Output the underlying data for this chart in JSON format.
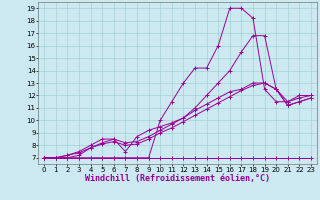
{
  "xlabel": "Windchill (Refroidissement éolien,°C)",
  "bg_color": "#cce8f0",
  "line_color": "#990099",
  "grid_color": "#99cccc",
  "xlim": [
    -0.5,
    23.5
  ],
  "ylim": [
    6.5,
    19.5
  ],
  "xticks": [
    0,
    1,
    2,
    3,
    4,
    5,
    6,
    7,
    8,
    9,
    10,
    11,
    12,
    13,
    14,
    15,
    16,
    17,
    18,
    19,
    20,
    21,
    22,
    23
  ],
  "yticks": [
    7,
    8,
    9,
    10,
    11,
    12,
    13,
    14,
    15,
    16,
    17,
    18,
    19
  ],
  "line1_x": [
    0,
    1,
    2,
    3,
    4,
    5,
    6,
    7,
    8,
    9,
    10,
    11,
    12,
    13,
    14,
    15,
    16,
    17,
    18,
    19,
    20,
    21,
    22,
    23
  ],
  "line1_y": [
    7,
    7,
    7,
    7,
    7,
    7,
    7,
    7,
    7,
    7,
    7,
    7,
    7,
    7,
    7,
    7,
    7,
    7,
    7,
    7,
    7,
    7,
    7,
    7
  ],
  "line2_x": [
    0,
    1,
    2,
    3,
    4,
    5,
    6,
    7,
    8,
    9,
    10,
    11,
    12,
    13,
    14,
    15,
    16,
    17,
    18,
    19,
    20,
    21,
    22,
    23
  ],
  "line2_y": [
    7,
    7,
    7,
    7,
    7,
    7,
    7,
    7,
    7,
    7,
    10,
    11.5,
    13,
    14.2,
    14.2,
    16,
    19,
    19,
    18.2,
    12.5,
    11.5,
    11.5,
    12,
    12
  ],
  "line3_x": [
    0,
    1,
    2,
    3,
    4,
    5,
    6,
    7,
    8,
    9,
    10,
    11,
    12,
    13,
    14,
    15,
    16,
    17,
    18,
    19,
    20,
    21,
    22,
    23
  ],
  "line3_y": [
    7,
    7,
    7,
    7.2,
    7.8,
    8.2,
    8.5,
    7.5,
    8.7,
    9.2,
    9.5,
    9.8,
    10.2,
    11,
    12,
    13,
    14,
    15.5,
    16.8,
    16.8,
    12.5,
    11.2,
    11.5,
    11.8
  ],
  "line4_x": [
    0,
    1,
    2,
    3,
    4,
    5,
    6,
    7,
    8,
    9,
    10,
    11,
    12,
    13,
    14,
    15,
    16,
    17,
    18,
    19,
    20,
    21,
    22,
    23
  ],
  "line4_y": [
    7,
    7,
    7.2,
    7.5,
    8,
    8.5,
    8.5,
    8.2,
    8.3,
    8.7,
    9.2,
    9.7,
    10.2,
    10.8,
    11.3,
    11.8,
    12.3,
    12.5,
    13,
    13,
    12.5,
    11.5,
    11.8,
    12
  ],
  "line5_x": [
    0,
    1,
    2,
    3,
    4,
    5,
    6,
    7,
    8,
    9,
    10,
    11,
    12,
    13,
    14,
    15,
    16,
    17,
    18,
    19,
    20,
    21,
    22,
    23
  ],
  "line5_y": [
    7,
    7,
    7.2,
    7.4,
    7.8,
    8.1,
    8.3,
    8,
    8.1,
    8.5,
    9,
    9.4,
    9.9,
    10.4,
    10.9,
    11.4,
    11.9,
    12.4,
    12.8,
    13,
    12.5,
    11.2,
    11.5,
    11.8
  ],
  "xlabel_fontsize": 6,
  "tick_fontsize": 5
}
